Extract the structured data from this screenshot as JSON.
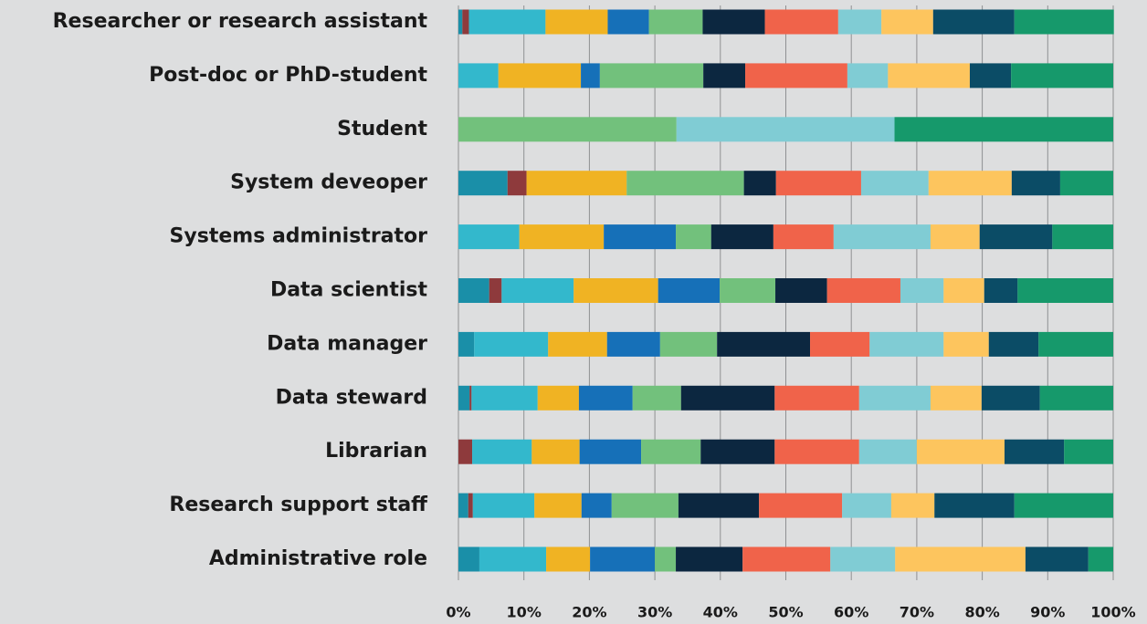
{
  "chart_data": {
    "type": "stacked_barh",
    "categories": [
      "Researcher or research assistant",
      "Post-doc or PhD-student",
      "Student",
      "System deveoper",
      "Systems administrator",
      "Data scientist",
      "Data manager",
      "Data steward",
      "Librarian",
      "Research support staff",
      "Administrative role"
    ],
    "series": [
      {
        "color": "#1a8fa8",
        "values": [
          0.6,
          0,
          0,
          7.5,
          0,
          4.7,
          2.4,
          1.7,
          0,
          1.5,
          3.2
        ]
      },
      {
        "color": "#8e3a3c",
        "values": [
          1.0,
          0,
          0,
          2.9,
          0,
          1.9,
          0,
          0.3,
          2.1,
          0.7,
          0
        ]
      },
      {
        "color": "#33b8cc",
        "values": [
          11.7,
          6.1,
          0,
          0,
          9.3,
          11.0,
          11.3,
          10.1,
          9.1,
          9.4,
          10.2
        ]
      },
      {
        "color": "#f0b323",
        "values": [
          9.5,
          12.6,
          0,
          15.3,
          12.9,
          12.9,
          9.0,
          6.3,
          7.3,
          7.2,
          6.7
        ]
      },
      {
        "color": "#1670b8",
        "values": [
          6.3,
          2.9,
          0,
          0,
          11.0,
          9.4,
          8.1,
          8.2,
          9.4,
          4.6,
          9.9
        ]
      },
      {
        "color": "#72c17c",
        "values": [
          8.2,
          15.8,
          33.3,
          17.9,
          5.4,
          8.5,
          8.7,
          7.4,
          9.1,
          10.2,
          3.2
        ]
      },
      {
        "color": "#0c2740",
        "values": [
          9.5,
          6.4,
          0,
          4.9,
          9.5,
          7.9,
          14.2,
          14.3,
          11.3,
          12.3,
          10.2
        ]
      },
      {
        "color": "#f0634a",
        "values": [
          11.2,
          15.6,
          0,
          13.0,
          9.2,
          11.2,
          9.1,
          12.9,
          12.9,
          12.7,
          13.4
        ]
      },
      {
        "color": "#80ccd4",
        "values": [
          6.6,
          6.2,
          33.3,
          10.3,
          14.8,
          6.6,
          11.3,
          10.9,
          8.8,
          7.5,
          9.9
        ]
      },
      {
        "color": "#fdc55e",
        "values": [
          7.9,
          12.5,
          0,
          12.7,
          7.5,
          6.2,
          6.9,
          7.8,
          13.4,
          6.6,
          19.9
        ]
      },
      {
        "color": "#0b4c66",
        "values": [
          12.4,
          6.3,
          0,
          7.4,
          11.1,
          5.1,
          7.6,
          8.9,
          9.1,
          12.2,
          9.6
        ]
      },
      {
        "color": "#16996b",
        "values": [
          15.2,
          15.6,
          33.4,
          8.1,
          9.3,
          14.6,
          11.4,
          11.2,
          7.5,
          15.1,
          3.8
        ]
      }
    ],
    "xlim": [
      0,
      100
    ],
    "xticks": [
      {
        "value": 0,
        "label": "0%"
      },
      {
        "value": 10,
        "label": "10%"
      },
      {
        "value": 20,
        "label": "20%"
      },
      {
        "value": 30,
        "label": "30%"
      },
      {
        "value": 40,
        "label": "40%"
      },
      {
        "value": 50,
        "label": "50%"
      },
      {
        "value": 60,
        "label": "60%"
      },
      {
        "value": 70,
        "label": "70%"
      },
      {
        "value": 80,
        "label": "80%"
      },
      {
        "value": 90,
        "label": "90%"
      },
      {
        "value": 100,
        "label": "100%"
      }
    ],
    "grid": true
  }
}
